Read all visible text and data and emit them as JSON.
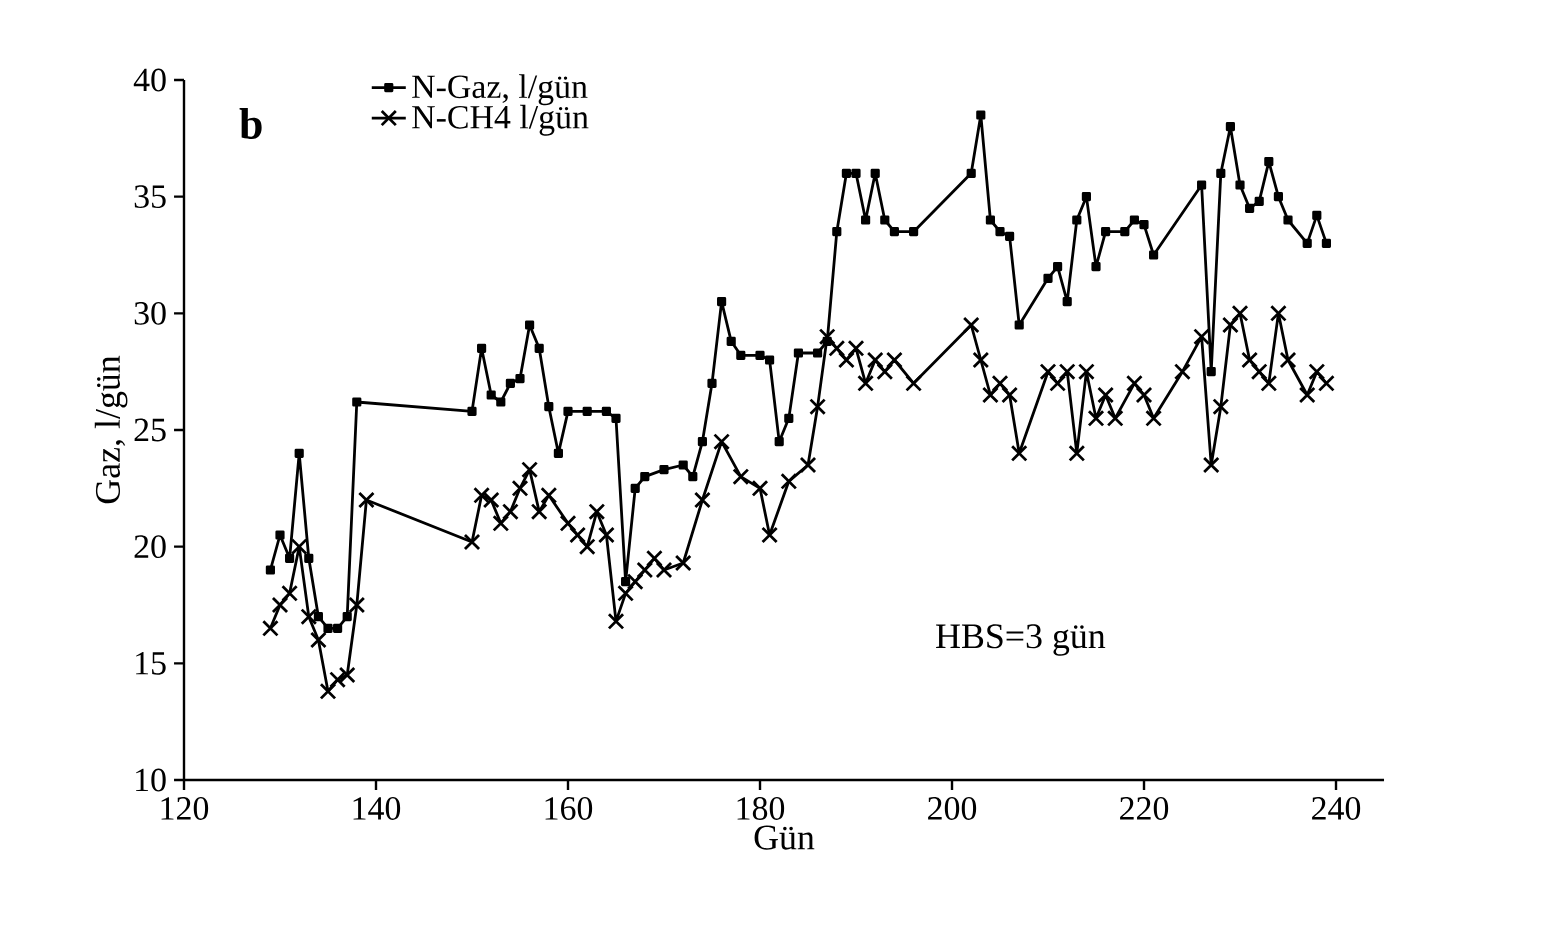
{
  "chart_data": {
    "type": "line",
    "xlabel": "Gün",
    "ylabel": "Gaz, l/gün",
    "annotations": [
      "b",
      "HBS=3 gün"
    ],
    "xlim": [
      120,
      245
    ],
    "ylim": [
      10,
      40
    ],
    "xticks": [
      120,
      140,
      160,
      180,
      200,
      220,
      240
    ],
    "yticks": [
      10,
      15,
      20,
      25,
      30,
      35,
      40
    ],
    "grid": false,
    "legend": "top left",
    "line_style": "solid",
    "series": [
      {
        "name": "N-Gaz, l/gün",
        "color": "#000000",
        "marker": "square",
        "x": [
          129,
          130,
          131,
          132,
          133,
          134,
          135,
          136,
          137,
          138,
          150,
          151,
          152,
          153,
          154,
          155,
          156,
          157,
          158,
          159,
          160,
          162,
          164,
          165,
          166,
          167,
          168,
          170,
          172,
          173,
          174,
          175,
          176,
          177,
          178,
          180,
          181,
          182,
          183,
          184,
          186,
          187,
          188,
          189,
          190,
          191,
          192,
          193,
          194,
          196,
          202,
          203,
          204,
          205,
          206,
          207,
          210,
          211,
          212,
          213,
          214,
          215,
          216,
          218,
          219,
          220,
          221,
          226,
          227,
          228,
          229,
          230,
          231,
          232,
          233,
          234,
          235,
          237,
          238,
          239
        ],
        "values": [
          19,
          20.5,
          19.5,
          24,
          19.5,
          17,
          16.5,
          16.5,
          17,
          26.2,
          25.8,
          28.5,
          26.5,
          26.2,
          27,
          27.2,
          29.5,
          28.5,
          26,
          24,
          25.8,
          25.8,
          25.8,
          25.5,
          18.5,
          22.5,
          23,
          23.3,
          23.5,
          23,
          24.5,
          27,
          30.5,
          28.8,
          28.2,
          28.2,
          28,
          24.5,
          25.5,
          28.3,
          28.3,
          28.8,
          33.5,
          36,
          36,
          34,
          36,
          34,
          33.5,
          33.5,
          36,
          38.5,
          34,
          33.5,
          33.3,
          29.5,
          31.5,
          32,
          30.5,
          34,
          35,
          32,
          33.5,
          33.5,
          34,
          33.8,
          32.5,
          35.5,
          27.5,
          36,
          38,
          35.5,
          34.5,
          34.8,
          36.5,
          35,
          34,
          33,
          34.2,
          33
        ]
      },
      {
        "name": "N-CH4 l/gün",
        "color": "#000000",
        "marker": "cross",
        "x": [
          129,
          130,
          131,
          132,
          133,
          134,
          135,
          136,
          137,
          138,
          139,
          150,
          151,
          152,
          153,
          154,
          155,
          156,
          157,
          158,
          160,
          161,
          162,
          163,
          164,
          165,
          166,
          167,
          168,
          169,
          170,
          172,
          174,
          176,
          178,
          180,
          181,
          183,
          185,
          186,
          187,
          188,
          189,
          190,
          191,
          192,
          193,
          194,
          196,
          202,
          203,
          204,
          205,
          206,
          207,
          210,
          211,
          212,
          213,
          214,
          215,
          216,
          217,
          219,
          220,
          221,
          224,
          226,
          227,
          228,
          229,
          230,
          231,
          232,
          233,
          234,
          235,
          237,
          238,
          239
        ],
        "values": [
          16.5,
          17.5,
          18,
          20,
          17,
          16,
          13.8,
          14.3,
          14.5,
          17.5,
          22,
          20.2,
          22.2,
          22,
          21,
          21.5,
          22.5,
          23.3,
          21.5,
          22.2,
          21,
          20.5,
          20,
          21.5,
          20.5,
          16.8,
          18,
          18.5,
          19,
          19.5,
          19,
          19.3,
          22,
          24.5,
          23,
          22.5,
          20.5,
          22.8,
          23.5,
          26,
          29,
          28.5,
          28,
          28.5,
          27,
          28,
          27.5,
          28,
          27,
          29.5,
          28,
          26.5,
          27,
          26.5,
          24,
          27.5,
          27,
          27.5,
          24,
          27.5,
          25.5,
          26.5,
          25.5,
          27,
          26.5,
          25.5,
          27.5,
          29,
          23.5,
          26,
          29.5,
          30,
          28,
          27.5,
          27,
          30,
          28,
          26.5,
          27.5,
          27
        ]
      }
    ]
  }
}
